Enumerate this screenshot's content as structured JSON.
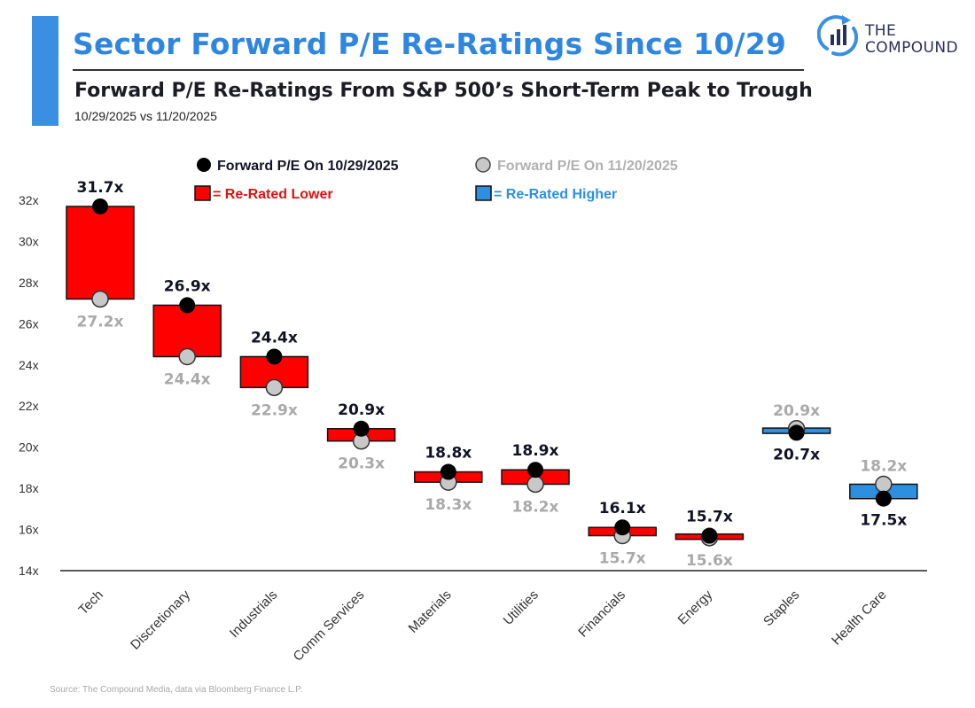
{
  "header": {
    "title": "Sector Forward P/E Re-Ratings Since 10/29",
    "subtitle": "Forward P/E Re-Ratings From S&P 500’s Short-Term Peak to Trough",
    "dates": "10/29/2025 vs 11/20/2025"
  },
  "logo": {
    "line1": "THE",
    "line2": "COMPOUND",
    "icon": "chart-growth-icon"
  },
  "colors": {
    "accent": "#3a8fe3",
    "lower": "#ff0000",
    "higher": "#2d8fe0",
    "dot_start": "#000000",
    "dot_end": "#c8c8c8",
    "start_label": "#121226",
    "end_label": "#a9a9a9"
  },
  "chart_data": {
    "type": "floating-bar-dumbbell",
    "title": "Forward P/E Re-Ratings From S&P 500’s Short-Term Peak to Trough",
    "xlabel": "",
    "ylabel": "",
    "ylim": [
      14,
      32
    ],
    "yticks": [
      14,
      16,
      18,
      20,
      22,
      24,
      26,
      28,
      30,
      32
    ],
    "ytick_suffix": "x",
    "grid": false,
    "legend": [
      {
        "kind": "dot-start",
        "label": "Forward P/E On 10/29/2025"
      },
      {
        "kind": "dot-end",
        "label": "Forward P/E On 11/20/2025"
      },
      {
        "kind": "box-lower",
        "label": "= Re-Rated Lower"
      },
      {
        "kind": "box-higher",
        "label": "= Re-Rated Higher"
      }
    ],
    "categories": [
      "Tech",
      "Discretionary",
      "Industrials",
      "Comm Services",
      "Materials",
      "Utilities",
      "Financials",
      "Energy",
      "Staples",
      "Health Care"
    ],
    "series": [
      {
        "name": "Forward P/E On 10/29/2025",
        "values": [
          31.7,
          26.9,
          24.4,
          20.9,
          18.8,
          18.9,
          16.1,
          15.7,
          20.7,
          17.5
        ],
        "labels": [
          "31.7x",
          "26.9x",
          "24.4x",
          "20.9x",
          "18.8x",
          "18.9x",
          "16.1x",
          "15.7x",
          "20.7x",
          "17.5x"
        ]
      },
      {
        "name": "Forward P/E On 11/20/2025",
        "values": [
          27.2,
          24.4,
          22.9,
          20.3,
          18.3,
          18.2,
          15.7,
          15.6,
          20.9,
          18.2
        ],
        "labels": [
          "27.2x",
          "24.4x",
          "22.9x",
          "20.3x",
          "18.3x",
          "18.2x",
          "15.7x",
          "15.6x",
          "20.9x",
          "18.2x"
        ]
      }
    ]
  },
  "footer": {
    "source": "Source: The Compound Media, data via Bloomberg Finance L.P."
  }
}
